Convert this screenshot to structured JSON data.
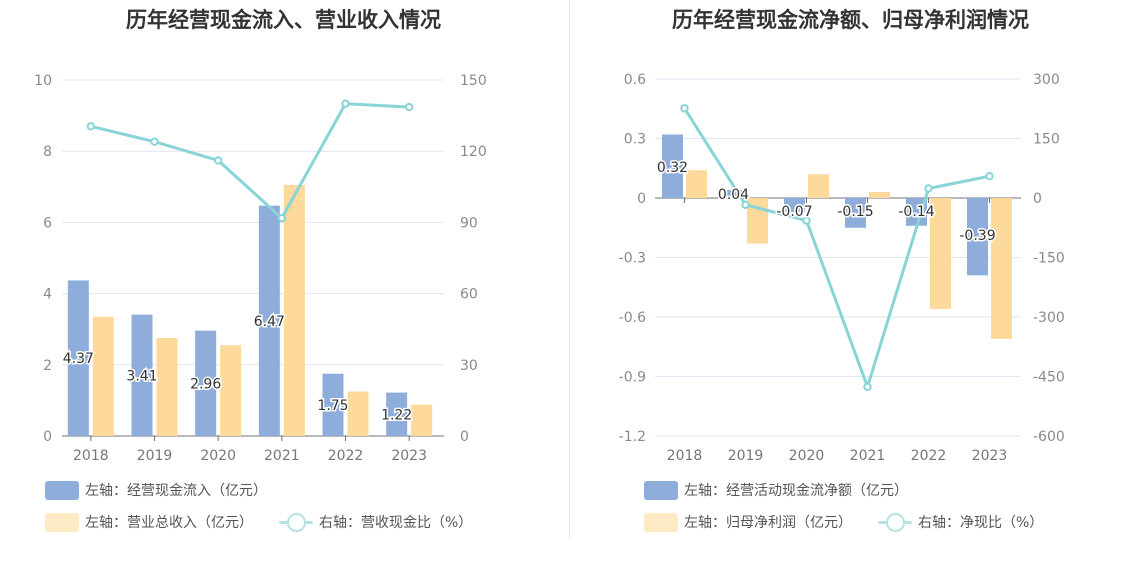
{
  "chart_data": [
    {
      "type": "bar",
      "title": "历年经营现金流入、营业收入情况",
      "categories": [
        "2018",
        "2019",
        "2020",
        "2021",
        "2022",
        "2023"
      ],
      "left_axis": {
        "min": 0,
        "max": 10,
        "step": 2,
        "ticks": [
          "0",
          "2",
          "4",
          "6",
          "8",
          "10"
        ]
      },
      "right_axis": {
        "min": 0,
        "max": 150,
        "step": 30,
        "ticks": [
          "0",
          "30",
          "60",
          "90",
          "120",
          "150"
        ]
      },
      "series": [
        {
          "name": "左轴：经营现金流入（亿元）",
          "kind": "bar",
          "axis": "left",
          "color": "#8eaddb",
          "values": [
            4.37,
            3.41,
            2.96,
            6.47,
            1.75,
            1.22
          ],
          "labels": [
            "4.37",
            "3.41",
            "2.96",
            "6.47",
            "1.75",
            "1.22"
          ]
        },
        {
          "name": "左轴：营业总收入（亿元）",
          "kind": "bar",
          "axis": "left",
          "color": "#fdd99b",
          "values": [
            3.35,
            2.75,
            2.55,
            7.05,
            1.25,
            0.88
          ]
        },
        {
          "name": "右轴：营收现金比（%）",
          "kind": "line",
          "axis": "right",
          "color": "#88d4d6",
          "values": [
            130.5,
            124.0,
            116.1,
            91.8,
            140.0,
            138.6
          ]
        }
      ]
    },
    {
      "type": "bar",
      "title": "历年经营现金流净额、归母净利润情况",
      "categories": [
        "2018",
        "2019",
        "2020",
        "2021",
        "2022",
        "2023"
      ],
      "left_axis": {
        "min": -1.2,
        "max": 0.6,
        "step": 0.3,
        "ticks": [
          "-1.2",
          "-0.9",
          "-0.6",
          "-0.3",
          "0",
          "0.3",
          "0.6"
        ]
      },
      "right_axis": {
        "min": -600,
        "max": 300,
        "step": 150,
        "ticks": [
          "-600",
          "-450",
          "-300",
          "-150",
          "0",
          "150",
          "300"
        ]
      },
      "series": [
        {
          "name": "左轴：经营活动现金流净额（亿元）",
          "kind": "bar",
          "axis": "left",
          "color": "#8eaddb",
          "values": [
            0.32,
            0.04,
            -0.07,
            -0.15,
            -0.14,
            -0.39
          ],
          "labels": [
            "0.32",
            "0.04",
            "-0.07",
            "-0.15",
            "-0.14",
            "-0.39"
          ]
        },
        {
          "name": "左轴：归母净利润（亿元）",
          "kind": "bar",
          "axis": "left",
          "color": "#fdd99b",
          "values": [
            0.14,
            -0.23,
            0.12,
            0.03,
            -0.56,
            -0.71
          ]
        },
        {
          "name": "右轴：净现比（%）",
          "kind": "line",
          "axis": "right",
          "color": "#88d4d6",
          "values": [
            226,
            -17,
            -57,
            -476,
            24,
            55
          ]
        }
      ]
    }
  ]
}
